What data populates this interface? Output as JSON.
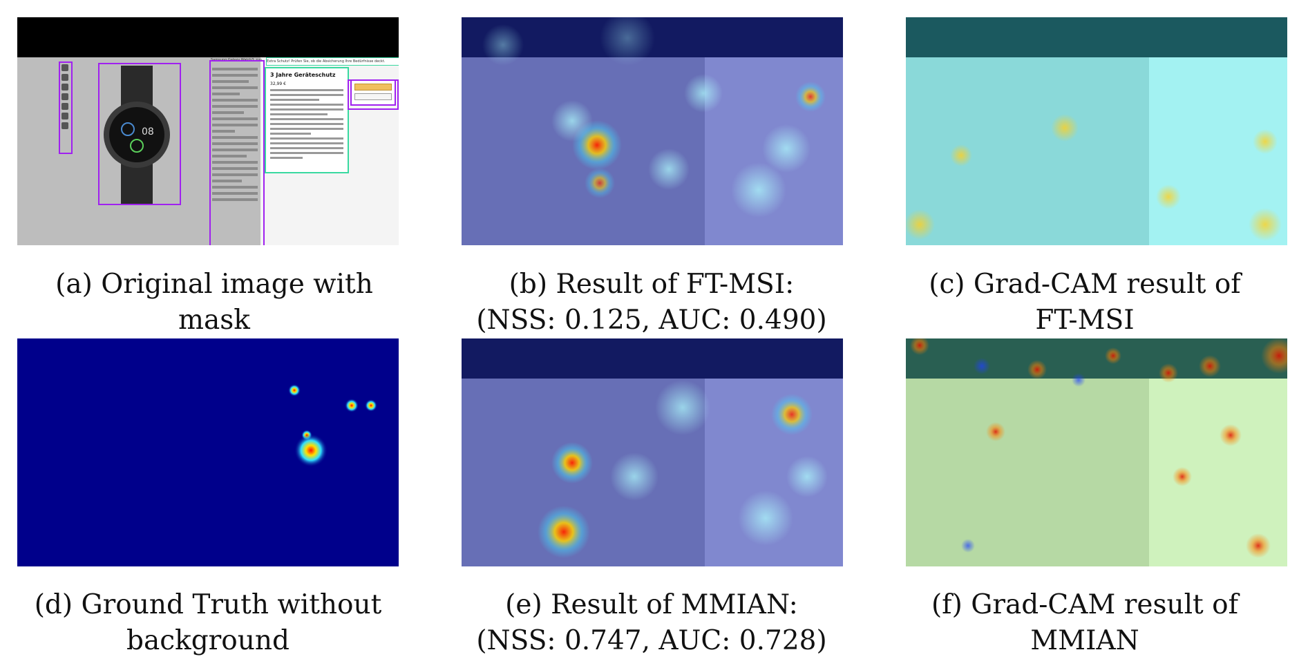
{
  "figure": {
    "panels": [
      {
        "id": "a",
        "caption_line1": "(a) Original image with",
        "caption_line2": "mask"
      },
      {
        "id": "b",
        "caption_line1": "(b) Result of FT-MSI:",
        "caption_line2": "(NSS: 0.125, AUC: 0.490)"
      },
      {
        "id": "c",
        "caption_line1": "(c) Grad-CAM result of",
        "caption_line2": "FT-MSI"
      },
      {
        "id": "d",
        "caption_line1": "(d) Ground Truth without",
        "caption_line2": "background"
      },
      {
        "id": "e",
        "caption_line1": "(e) Result of MMIAN:",
        "caption_line2": "(NSS: 0.747, AUC: 0.728)"
      },
      {
        "id": "f",
        "caption_line1": "(f) Grad-CAM result of",
        "caption_line2": "MMIAN"
      }
    ],
    "screenshot": {
      "popup_title": "3 Jahre Geräteschutz",
      "popup_price": "32,99 €",
      "banner_text": "Extra Schutz! Prüfen Sie, ob die Absicherung Ihre Bedürfnisse deckt.",
      "product_title": "Samsung Galaxy Watch3, rund"
    },
    "colors": {
      "mask_box": "#a020f0",
      "popup_border": "#38d9a0",
      "gt_background": "#00008b"
    }
  }
}
